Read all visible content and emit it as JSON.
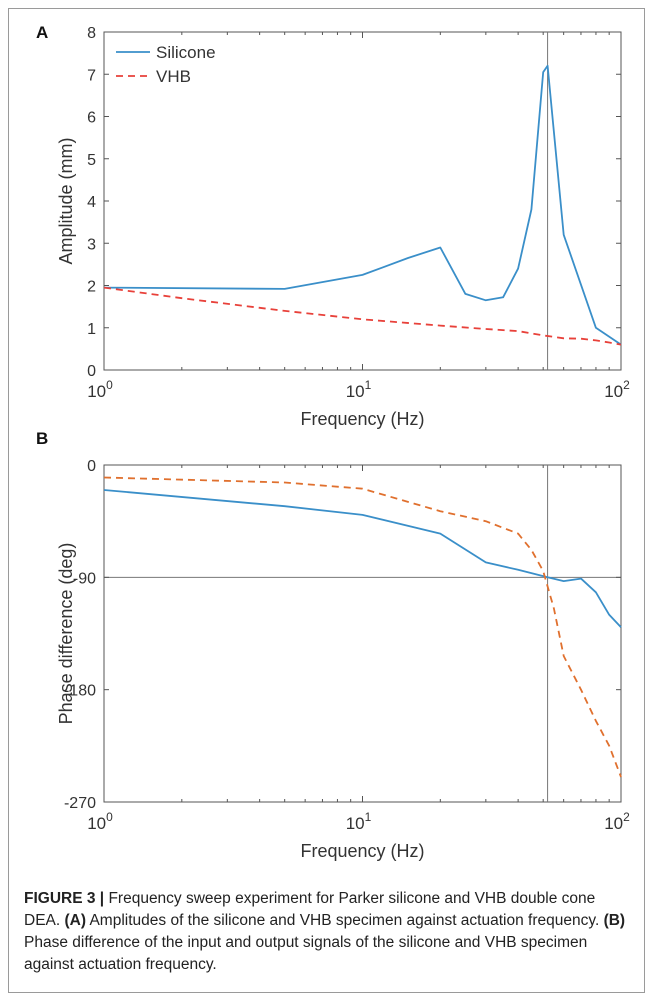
{
  "figure": {
    "caption_label": "FIGURE 3 |",
    "caption_text": " Frequency sweep experiment for Parker silicone and VHB double cone DEA. ",
    "caption_a_label": "(A)",
    "caption_a_text": " Amplitudes of the silicone and VHB specimen against actuation frequency. ",
    "caption_b_label": "(B)",
    "caption_b_text": " Phase difference of the input and output signals of the silicone and VHB specimen against actuation frequency."
  },
  "chart_data": [
    {
      "type": "line",
      "panel_label": "A",
      "xlabel": "Frequency (Hz)",
      "ylabel": "Amplitude (mm)",
      "xscale": "log",
      "xlim": [
        1,
        100
      ],
      "ylim": [
        0,
        8
      ],
      "yticks": [
        "0",
        "1",
        "2",
        "3",
        "4",
        "5",
        "6",
        "7",
        "8"
      ],
      "xticks": [
        {
          "base": "10",
          "exp": "0"
        },
        {
          "base": "10",
          "exp": "1"
        },
        {
          "base": "10",
          "exp": "2"
        }
      ],
      "vline_x": 52,
      "grid": false,
      "legend_position": "top-left",
      "series": [
        {
          "name": "Silicone",
          "color": "#3a8fc9",
          "dash": "solid",
          "x": [
            1,
            5,
            10,
            15,
            20,
            25,
            30,
            35,
            40,
            45,
            50,
            52,
            60,
            80,
            100
          ],
          "y": [
            1.95,
            1.92,
            2.25,
            2.65,
            2.9,
            1.8,
            1.65,
            1.72,
            2.4,
            3.8,
            7.05,
            7.2,
            3.2,
            1.0,
            0.6
          ]
        },
        {
          "name": "VHB",
          "color": "#e8413a",
          "dash": "dashed",
          "x": [
            1,
            2,
            5,
            10,
            20,
            30,
            40,
            50,
            60,
            70,
            80,
            90,
            100
          ],
          "y": [
            1.95,
            1.7,
            1.4,
            1.2,
            1.05,
            0.97,
            0.92,
            0.82,
            0.75,
            0.74,
            0.7,
            0.65,
            0.6
          ]
        }
      ]
    },
    {
      "type": "line",
      "panel_label": "B",
      "xlabel": "Frequency (Hz)",
      "ylabel": "Phase difference (deg)",
      "xscale": "log",
      "xlim": [
        1,
        100
      ],
      "ylim": [
        -270,
        0
      ],
      "yticks": [
        "0",
        "-90",
        "-180",
        "-270"
      ],
      "ytick_values": [
        0,
        -90,
        -180,
        -270
      ],
      "xticks": [
        {
          "base": "10",
          "exp": "0"
        },
        {
          "base": "10",
          "exp": "1"
        },
        {
          "base": "10",
          "exp": "2"
        }
      ],
      "vline_x": 52,
      "hline_y": -90,
      "grid": false,
      "series": [
        {
          "color": "#3a8fc9",
          "dash": "solid",
          "x": [
            1,
            5,
            10,
            20,
            30,
            40,
            52,
            60,
            70,
            80,
            90,
            100
          ],
          "y": [
            -20,
            -33,
            -40,
            -55,
            -78,
            -84,
            -90,
            -93,
            -91,
            -102,
            -120,
            -130
          ]
        },
        {
          "color": "#e0702e",
          "dash": "dashed",
          "x": [
            1,
            5,
            10,
            20,
            30,
            40,
            45,
            50,
            55,
            60,
            70,
            80,
            90,
            100
          ],
          "y": [
            -10,
            -14,
            -19,
            -37,
            -45,
            -55,
            -68,
            -85,
            -115,
            -153,
            -180,
            -205,
            -225,
            -250
          ]
        }
      ]
    }
  ]
}
